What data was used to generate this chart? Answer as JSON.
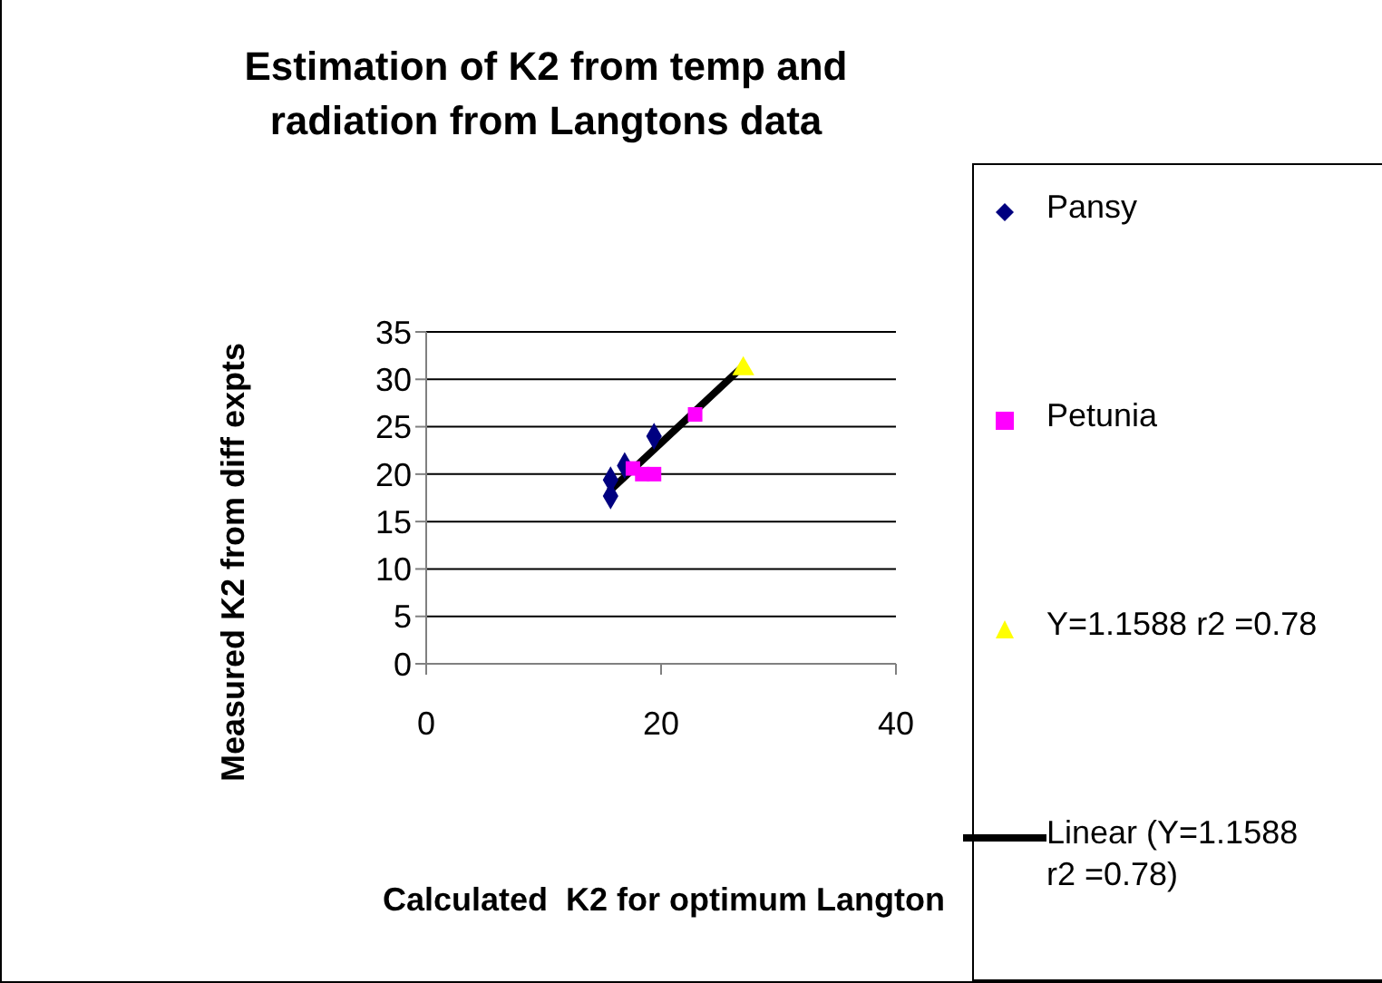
{
  "chart_data": {
    "type": "scatter",
    "title": "Estimation of K2 from temp and radiation from Langtons data",
    "xlabel": "Calculated  K2 for optimum Langton",
    "ylabel": "Measured K2 from diff expts",
    "xlim": [
      0,
      40
    ],
    "xticks": [
      0,
      20,
      40
    ],
    "ylim": [
      0,
      35
    ],
    "yticks": [
      0,
      5,
      10,
      15,
      20,
      25,
      30,
      35
    ],
    "grid": "y",
    "legend": "right",
    "series": [
      {
        "name": "Pansy",
        "color": "#000080",
        "marker": "diamond",
        "x": [
          15.7,
          15.7,
          16.9,
          19.4
        ],
        "values": [
          17.7,
          19.4,
          20.9,
          24.0
        ]
      },
      {
        "name": "Petunia",
        "color": "#ff00ff",
        "marker": "square",
        "x": [
          17.6,
          18.4,
          19.4,
          22.9
        ],
        "values": [
          20.6,
          20.0,
          20.0,
          26.3
        ]
      },
      {
        "name": "Y=1.1588 r2 =0.78",
        "color": "#ffff00",
        "marker": "triangle",
        "x": [
          27.0
        ],
        "values": [
          31.1
        ]
      },
      {
        "name": "Linear (Y=1.1588 r2 =0.78)",
        "type": "line",
        "color": "#000000",
        "marker": "none",
        "line_style": "solid",
        "x": [
          15.6,
          27.0
        ],
        "values": [
          18.2,
          31.4
        ]
      }
    ]
  }
}
